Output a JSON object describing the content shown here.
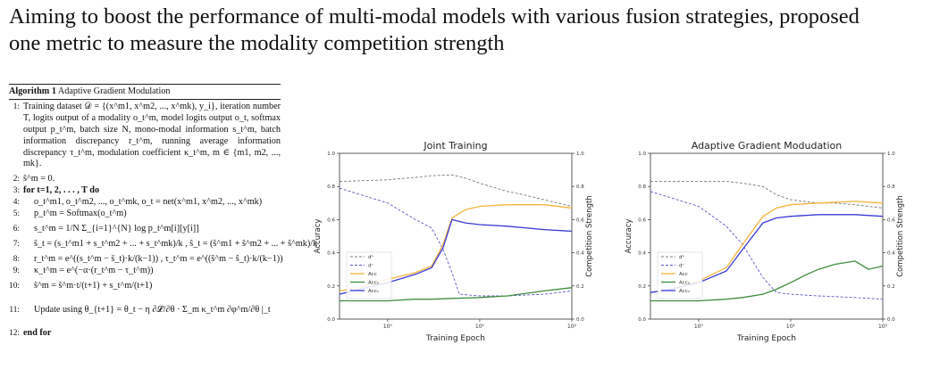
{
  "slide": {
    "title_line1": "Aiming to boost the performance of multi-modal models with various fusion strategies, proposed",
    "title_line2": "one metric to measure the modality competition strength"
  },
  "algorithm": {
    "header_label": "Algorithm 1",
    "header_name": "Adaptive Gradient Modulation",
    "lines": [
      {
        "no": "1:",
        "text": "Training dataset 𝒟 = {(x^m1, x^m2, ..., x^mk), y_i}, iteration number T, logits output of a modality o_t^m, model logits output o_t, softmax output p_t^m, batch size N, mono-modal information s_t^m, batch information discrepancy r_t^m, running average information discrepancy τ_t^m, modulation coefficient κ_t^m, m ∈ {m1, m2, ..., mk}."
      },
      {
        "no": "2:",
        "text": "ŝ^m = 0."
      },
      {
        "no": "3:",
        "text": "for t=1, 2, . . . , T do"
      },
      {
        "no": "4:",
        "text": "o_t^m1, o_t^m2, ..., o_t^mk, o_t = net(x^m1, x^m2, ..., x^mk)"
      },
      {
        "no": "5:",
        "text": "p_t^m = Softmax(o_t^m)"
      },
      {
        "no": "6:",
        "text": "s_t^m = 1/N Σ_{i=1}^{N} log p_t^m[i][y[i]]"
      },
      {
        "no": "7:",
        "text": "s̄_t = (s_t^m1 + s_t^m2 + ... + s_t^mk)/k ,  ŝ_t = (ŝ^m1 + ŝ^m2 + ... + ŝ^mk)/k"
      },
      {
        "no": "8:",
        "text": "r_t^m = e^((s_t^m − s̄_t)·k/(k−1)) ,  τ_t^m = e^((ŝ^m − ŝ_t)·k/(k−1))"
      },
      {
        "no": "9:",
        "text": "κ_t^m = e^(−α·(r_t^m − τ_t^m))"
      },
      {
        "no": "10:",
        "text": "ŝ^m = ŝ^m·t/(t+1) + s_t^m/(t+1)"
      },
      {
        "no": "11:",
        "text": "Update using θ_{t+1} = θ_t − η ∂𝓛/∂θ · Σ_m κ_t^m ∂φ^m/∂θ |_t"
      },
      {
        "no": "12:",
        "text": "end for"
      }
    ]
  },
  "chart_data": [
    {
      "type": "line",
      "title": "Joint Training",
      "xlabel": "Training Epoch",
      "ylabel": "Accuracy",
      "y2label": "Competition Strength",
      "xscale": "log",
      "xlim": [
        0.3,
        100
      ],
      "ylim": [
        0,
        1.0
      ],
      "y2lim": [
        0,
        1.0
      ],
      "xticks": [
        {
          "v": 1,
          "label": "10⁰"
        },
        {
          "v": 10,
          "label": "10¹"
        },
        {
          "v": 100,
          "label": "10²"
        }
      ],
      "yticks": [
        {
          "v": 0.0,
          "label": "0.0"
        },
        {
          "v": 0.2,
          "label": "0.2"
        },
        {
          "v": 0.4,
          "label": "0.4"
        },
        {
          "v": 0.6,
          "label": "0.6"
        },
        {
          "v": 0.8,
          "label": "0.8"
        },
        {
          "v": 1.0,
          "label": "1.0"
        }
      ],
      "y2ticks": [
        {
          "v": 0.0,
          "label": "0.0"
        },
        {
          "v": 0.2,
          "label": "0.2"
        },
        {
          "v": 0.4,
          "label": "0.4"
        },
        {
          "v": 0.6,
          "label": "0.6"
        },
        {
          "v": 0.8,
          "label": "0.8"
        },
        {
          "v": 1.0,
          "label": "1.0"
        }
      ],
      "legend_position": "lower-left",
      "series": [
        {
          "name": "dᵃ",
          "color": "#7b7b7b",
          "dash": "3,2",
          "x": [
            0.3,
            1,
            2,
            3,
            5,
            7,
            10,
            20,
            30,
            50,
            100
          ],
          "y": [
            0.83,
            0.84,
            0.855,
            0.865,
            0.87,
            0.85,
            0.82,
            0.77,
            0.75,
            0.72,
            0.68
          ]
        },
        {
          "name": "dᵛ",
          "color": "#5a5ac8",
          "dash": "3,2",
          "x": [
            0.3,
            1,
            2,
            3,
            4,
            5,
            6,
            10,
            20,
            50,
            100
          ],
          "y": [
            0.79,
            0.7,
            0.6,
            0.55,
            0.42,
            0.28,
            0.15,
            0.14,
            0.14,
            0.15,
            0.17
          ]
        },
        {
          "name": "Acc",
          "color": "#f3b43c",
          "dash": "",
          "x": [
            0.3,
            0.5,
            1,
            2,
            3,
            4,
            5,
            7,
            10,
            20,
            50,
            100
          ],
          "y": [
            0.17,
            0.19,
            0.24,
            0.28,
            0.32,
            0.45,
            0.61,
            0.66,
            0.68,
            0.69,
            0.69,
            0.67
          ]
        },
        {
          "name": "Accₐ",
          "color": "#3c8c3c",
          "dash": "",
          "x": [
            0.3,
            1,
            2,
            3,
            5,
            10,
            20,
            50,
            100
          ],
          "y": [
            0.11,
            0.11,
            0.12,
            0.12,
            0.125,
            0.13,
            0.14,
            0.17,
            0.19
          ]
        },
        {
          "name": "Accᵥ",
          "color": "#3a3ad6",
          "dash": "",
          "x": [
            0.3,
            0.5,
            1,
            2,
            3,
            4,
            5,
            7,
            10,
            20,
            50,
            100
          ],
          "y": [
            0.15,
            0.18,
            0.22,
            0.27,
            0.31,
            0.43,
            0.6,
            0.58,
            0.57,
            0.56,
            0.54,
            0.53
          ]
        }
      ]
    },
    {
      "type": "line",
      "title": "Adaptive Gradient Modudation",
      "xlabel": "Training Epoch",
      "ylabel": "Accuracy",
      "y2label": "Competition Strength",
      "xscale": "log",
      "xlim": [
        0.3,
        100
      ],
      "ylim": [
        0,
        1.0
      ],
      "y2lim": [
        0,
        1.0
      ],
      "xticks": [
        {
          "v": 1,
          "label": "10⁰"
        },
        {
          "v": 10,
          "label": "10¹"
        },
        {
          "v": 100,
          "label": "10²"
        }
      ],
      "yticks": [
        {
          "v": 0.0,
          "label": "0.0"
        },
        {
          "v": 0.2,
          "label": "0.2"
        },
        {
          "v": 0.4,
          "label": "0.4"
        },
        {
          "v": 0.6,
          "label": "0.6"
        },
        {
          "v": 0.8,
          "label": "0.8"
        },
        {
          "v": 1.0,
          "label": "1.0"
        }
      ],
      "y2ticks": [
        {
          "v": 0.0,
          "label": "0.0"
        },
        {
          "v": 0.2,
          "label": "0.2"
        },
        {
          "v": 0.4,
          "label": "0.4"
        },
        {
          "v": 0.6,
          "label": "0.6"
        },
        {
          "v": 0.8,
          "label": "0.8"
        },
        {
          "v": 1.0,
          "label": "1.0"
        }
      ],
      "legend_position": "lower-left",
      "series": [
        {
          "name": "dᵃ",
          "color": "#7b7b7b",
          "dash": "3,2",
          "x": [
            0.3,
            1,
            2,
            3,
            5,
            7,
            10,
            20,
            30,
            50,
            100
          ],
          "y": [
            0.83,
            0.83,
            0.83,
            0.82,
            0.8,
            0.75,
            0.72,
            0.7,
            0.7,
            0.69,
            0.67
          ]
        },
        {
          "name": "dᵛ",
          "color": "#5a5ac8",
          "dash": "3,2",
          "x": [
            0.3,
            1,
            2,
            3,
            5,
            7,
            10,
            20,
            50,
            100
          ],
          "y": [
            0.77,
            0.68,
            0.56,
            0.45,
            0.25,
            0.16,
            0.15,
            0.14,
            0.13,
            0.12
          ]
        },
        {
          "name": "Acc",
          "color": "#f3b43c",
          "dash": "",
          "x": [
            0.3,
            0.5,
            1,
            2,
            3,
            5,
            7,
            10,
            20,
            50,
            100
          ],
          "y": [
            0.16,
            0.18,
            0.23,
            0.31,
            0.45,
            0.62,
            0.67,
            0.69,
            0.7,
            0.71,
            0.7
          ]
        },
        {
          "name": "Accₐ",
          "color": "#3c8c3c",
          "dash": "",
          "x": [
            0.3,
            1,
            2,
            3,
            5,
            7,
            10,
            15,
            20,
            30,
            50,
            70,
            100
          ],
          "y": [
            0.11,
            0.11,
            0.12,
            0.13,
            0.15,
            0.18,
            0.22,
            0.27,
            0.3,
            0.33,
            0.35,
            0.3,
            0.32
          ]
        },
        {
          "name": "Accᵥ",
          "color": "#3a3ad6",
          "dash": "",
          "x": [
            0.3,
            0.5,
            1,
            2,
            3,
            5,
            7,
            10,
            20,
            50,
            100
          ],
          "y": [
            0.16,
            0.18,
            0.22,
            0.29,
            0.42,
            0.58,
            0.61,
            0.62,
            0.63,
            0.63,
            0.62
          ]
        }
      ]
    }
  ]
}
